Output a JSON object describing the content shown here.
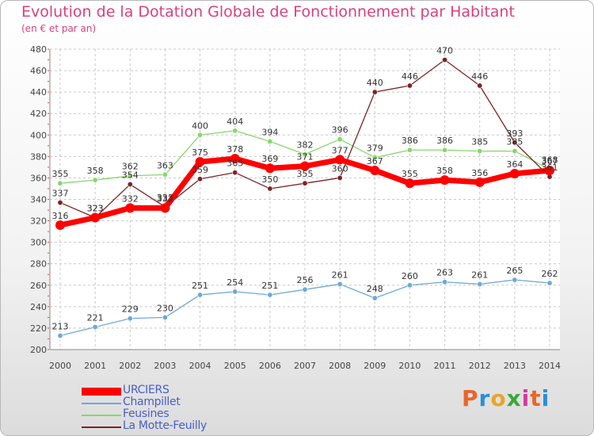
{
  "chart_data": {
    "type": "line",
    "title": "Evolution de la Dotation Globale de Fonctionnement par Habitant",
    "subtitle": "(en € et par an)",
    "xlabel": "",
    "ylabel": "",
    "ylim": [
      200,
      480
    ],
    "y_ticks": [
      "200",
      "220",
      "240",
      "260",
      "280",
      "300",
      "320",
      "340",
      "360",
      "380",
      "400",
      "420",
      "440",
      "460",
      "480"
    ],
    "categories": [
      "2000",
      "2001",
      "2002",
      "2003",
      "2004",
      "2005",
      "2006",
      "2007",
      "2008",
      "2009",
      "2010",
      "2011",
      "2012",
      "2013",
      "2014"
    ],
    "grid": true,
    "series": [
      {
        "name": "URCIERS",
        "color": "#ff0000",
        "values": [
          316,
          323,
          332,
          332,
          375,
          378,
          369,
          371,
          377,
          367,
          355,
          358,
          356,
          364,
          367
        ],
        "labels": [
          "316",
          "323",
          "332",
          "332",
          "375",
          "378",
          "369",
          "371",
          "377",
          "367",
          "355",
          "358",
          "356",
          "364",
          "367"
        ]
      },
      {
        "name": "Champillet",
        "color": "#6fa8d6",
        "values": [
          213,
          221,
          229,
          230,
          251,
          254,
          251,
          256,
          261,
          248,
          260,
          263,
          261,
          265,
          262
        ],
        "labels": [
          "213",
          "221",
          "229",
          "230",
          "251",
          "254",
          "251",
          "256",
          "261",
          "248",
          "260",
          "263",
          "261",
          "265",
          "262"
        ]
      },
      {
        "name": "Feusines",
        "color": "#88d66a",
        "values": [
          355,
          358,
          362,
          363,
          400,
          404,
          394,
          382,
          396,
          379,
          386,
          386,
          385,
          385,
          368
        ],
        "labels": [
          "355",
          "358",
          "362",
          "363",
          "400",
          "404",
          "394",
          "382",
          "396",
          "379",
          "386",
          "386",
          "385",
          "385",
          "368"
        ]
      },
      {
        "name": "La Motte-Feuilly",
        "color": "#7a2424",
        "values": [
          337,
          323,
          354,
          333,
          359,
          365,
          350,
          355,
          360,
          440,
          446,
          470,
          446,
          393,
          361
        ],
        "labels": [
          "337",
          "323",
          "354",
          "333",
          "359",
          "365",
          "350",
          "355",
          "360",
          "440",
          "446",
          "470",
          "446",
          "393",
          "361"
        ]
      }
    ]
  },
  "legend": {
    "items": [
      {
        "label": "URCIERS",
        "color": "#ff0000"
      },
      {
        "label": "Champillet",
        "color": "#6fa8d6"
      },
      {
        "label": "Feusines",
        "color": "#88d66a"
      },
      {
        "label": "La Motte-Feuilly",
        "color": "#7a2424"
      }
    ]
  },
  "logo": {
    "text": "Proxiti",
    "colors": [
      "#e8662a",
      "#2a8fd8",
      "#e8a52a",
      "#3aa83a",
      "#d63aa0",
      "#e8662a",
      "#2a8fd8"
    ]
  }
}
